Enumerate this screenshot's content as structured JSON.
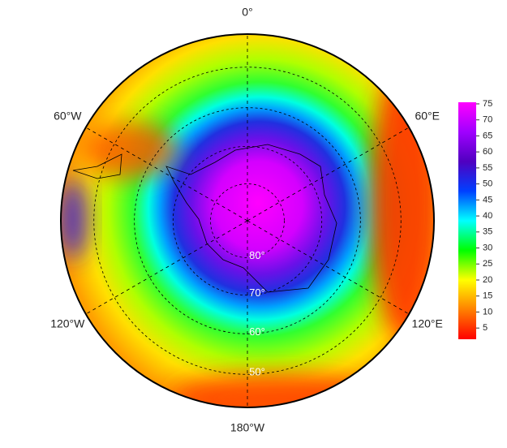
{
  "map": {
    "type": "polar-stereographic",
    "longitudes": [
      {
        "value": 0,
        "label": "0°"
      },
      {
        "value": 60,
        "label": "60°E"
      },
      {
        "value": 120,
        "label": "120°E"
      },
      {
        "value": 180,
        "label": "180°W"
      },
      {
        "value": -120,
        "label": "120°W"
      },
      {
        "value": -60,
        "label": "60°W"
      }
    ],
    "latitudes": [
      {
        "value": -80,
        "label": "80°"
      },
      {
        "value": -70,
        "label": "70°"
      },
      {
        "value": -60,
        "label": "60°"
      },
      {
        "value": -50,
        "label": "50°"
      }
    ],
    "colorbar": {
      "lim": [
        1.5,
        75.5
      ],
      "ticks": [
        5,
        10,
        15,
        20,
        25,
        30,
        35,
        40,
        45,
        50,
        55,
        60,
        65,
        70,
        75
      ],
      "colors": [
        "#ff0000",
        "#ff8000",
        "#ffff00",
        "#00ff00",
        "#00ffff",
        "#0040ff",
        "#5000c0",
        "#a000ff",
        "#ff00ff"
      ]
    }
  }
}
